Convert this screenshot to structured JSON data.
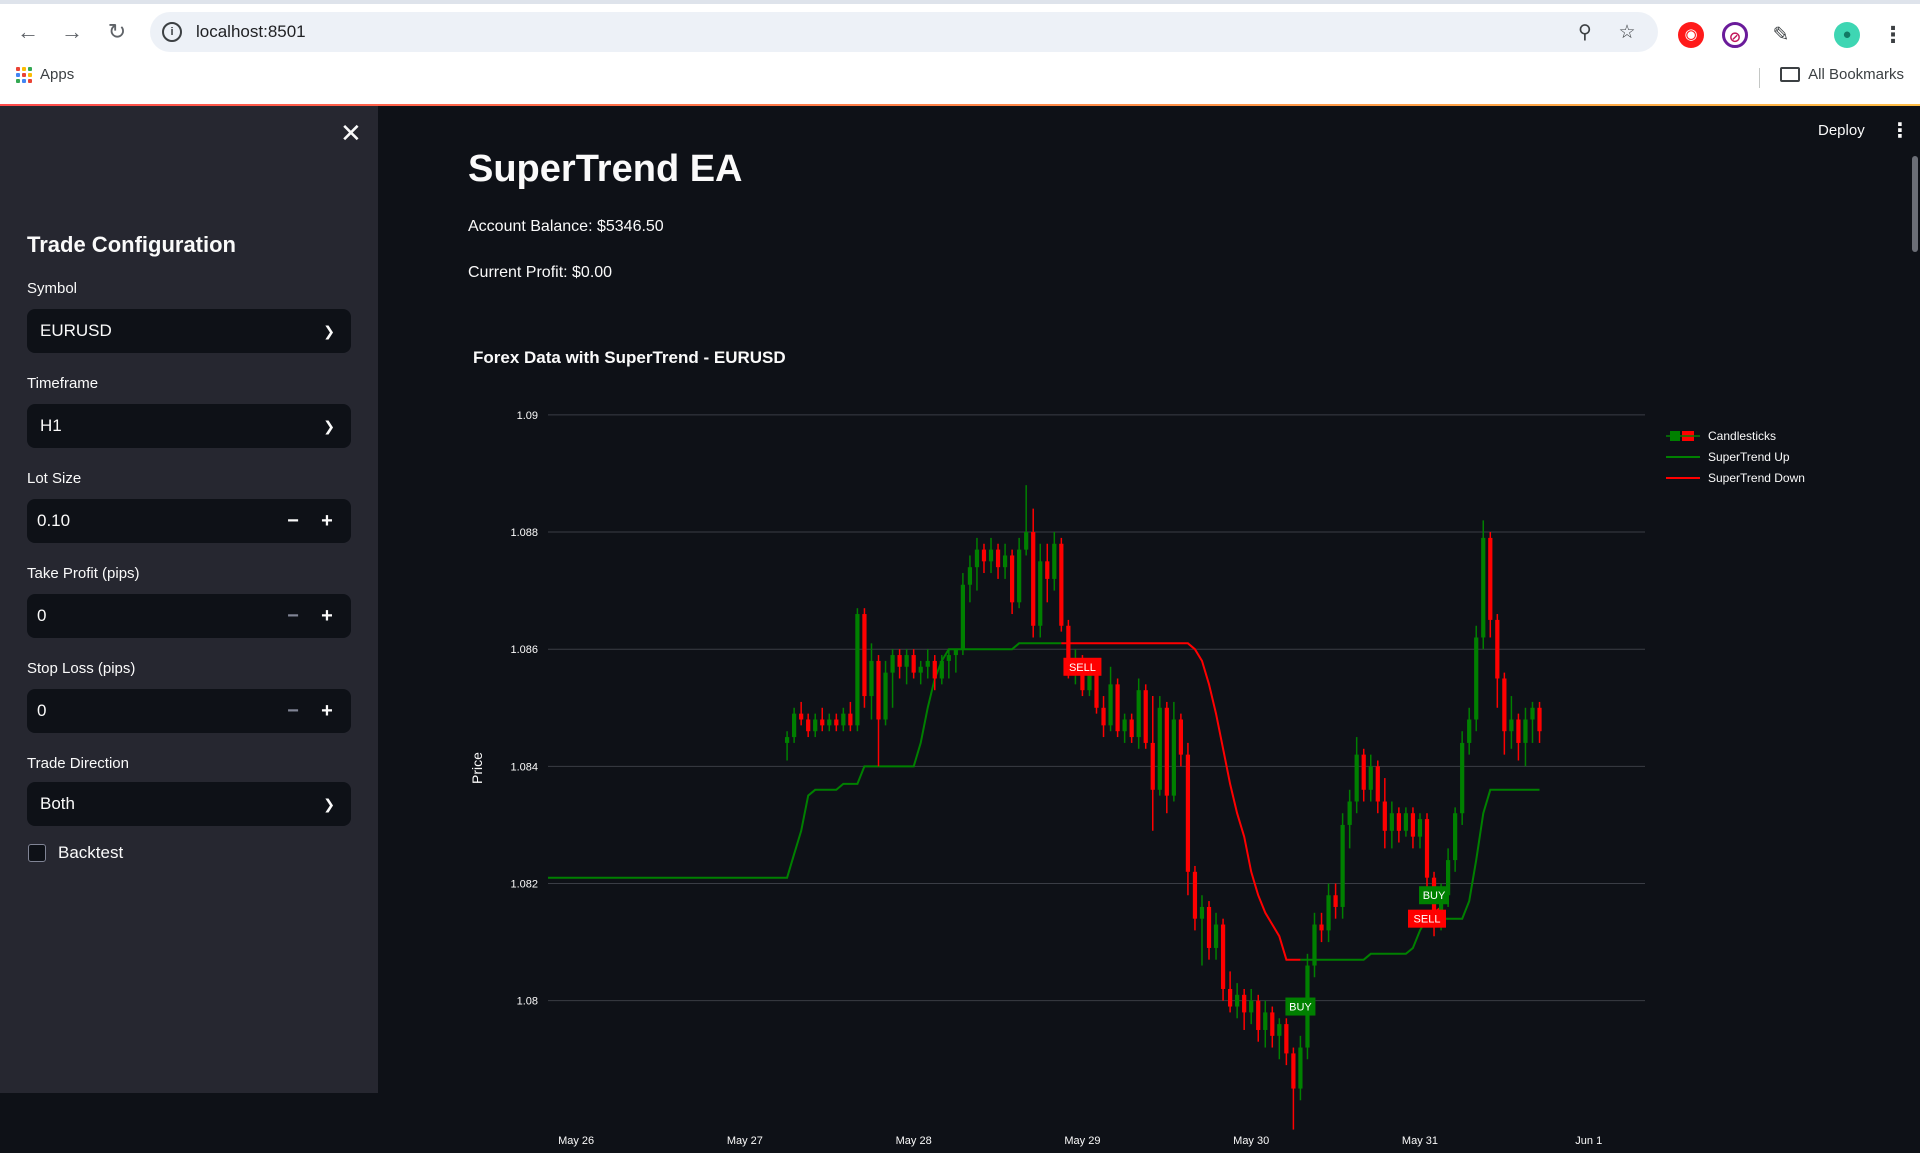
{
  "browser": {
    "url": "localhost:8501",
    "bookmarks": {
      "apps_label": "Apps",
      "all_label": "All Bookmarks"
    }
  },
  "app": {
    "deploy_label": "Deploy",
    "title": "SuperTrend EA",
    "account_balance": "Account Balance: $5346.50",
    "current_profit": "Current Profit: $0.00"
  },
  "sidebar": {
    "title": "Trade Configuration",
    "symbol": {
      "label": "Symbol",
      "value": "EURUSD"
    },
    "timeframe": {
      "label": "Timeframe",
      "value": "H1"
    },
    "lot_size": {
      "label": "Lot Size",
      "value": "0.10"
    },
    "take_profit": {
      "label": "Take Profit (pips)",
      "value": "0"
    },
    "stop_loss": {
      "label": "Stop Loss (pips)",
      "value": "0"
    },
    "trade_direction": {
      "label": "Trade Direction",
      "value": "Both"
    },
    "backtest": {
      "label": "Backtest",
      "checked": false
    }
  },
  "colors": {
    "bg": "#0e1117",
    "sidebar": "#262730",
    "up": "#008000",
    "down": "#ff0000",
    "text": "#fafafa"
  },
  "chart_data": {
    "type": "candlestick",
    "title": "Forex Data with SuperTrend - EURUSD",
    "ylabel": "Price",
    "ylim": [
      1.0774,
      1.0908
    ],
    "yticks": [
      1.08,
      1.082,
      1.084,
      1.086,
      1.088,
      1.09
    ],
    "ytick_labels": [
      "1.08",
      "1.082",
      "1.084",
      "1.086",
      "1.088",
      "1.09"
    ],
    "xlim": [
      0,
      156
    ],
    "xticks": [
      {
        "x": 4,
        "label": "May 26"
      },
      {
        "x": 28,
        "label": "May 27"
      },
      {
        "x": 52,
        "label": "May 28"
      },
      {
        "x": 76,
        "label": "May 29"
      },
      {
        "x": 100,
        "label": "May 30"
      },
      {
        "x": 124,
        "label": "May 31"
      },
      {
        "x": 148,
        "label": "Jun 1"
      }
    ],
    "legend": {
      "position": "top-right",
      "entries": [
        "Candlesticks",
        "SuperTrend Up",
        "SuperTrend Down"
      ]
    },
    "candles": [
      {
        "x": 34,
        "o": 1.0844,
        "h": 1.0846,
        "l": 1.0841,
        "c": 1.0845
      },
      {
        "x": 35,
        "o": 1.0845,
        "h": 1.085,
        "l": 1.0844,
        "c": 1.0849
      },
      {
        "x": 36,
        "o": 1.0849,
        "h": 1.0851,
        "l": 1.0847,
        "c": 1.0848
      },
      {
        "x": 37,
        "o": 1.0848,
        "h": 1.0849,
        "l": 1.0845,
        "c": 1.0846
      },
      {
        "x": 38,
        "o": 1.0846,
        "h": 1.0849,
        "l": 1.0845,
        "c": 1.0848
      },
      {
        "x": 39,
        "o": 1.0848,
        "h": 1.085,
        "l": 1.0846,
        "c": 1.0847
      },
      {
        "x": 40,
        "o": 1.0847,
        "h": 1.0849,
        "l": 1.0846,
        "c": 1.0848
      },
      {
        "x": 41,
        "o": 1.0848,
        "h": 1.0849,
        "l": 1.0846,
        "c": 1.0847
      },
      {
        "x": 42,
        "o": 1.0847,
        "h": 1.085,
        "l": 1.0846,
        "c": 1.0849
      },
      {
        "x": 43,
        "o": 1.0849,
        "h": 1.0851,
        "l": 1.0846,
        "c": 1.0847
      },
      {
        "x": 44,
        "o": 1.0847,
        "h": 1.0867,
        "l": 1.0846,
        "c": 1.0866
      },
      {
        "x": 45,
        "o": 1.0866,
        "h": 1.0867,
        "l": 1.085,
        "c": 1.0852
      },
      {
        "x": 46,
        "o": 1.0852,
        "h": 1.0861,
        "l": 1.0848,
        "c": 1.0858
      },
      {
        "x": 47,
        "o": 1.0858,
        "h": 1.0859,
        "l": 1.084,
        "c": 1.0848
      },
      {
        "x": 48,
        "o": 1.0848,
        "h": 1.0858,
        "l": 1.0847,
        "c": 1.0856
      },
      {
        "x": 49,
        "o": 1.0856,
        "h": 1.086,
        "l": 1.085,
        "c": 1.0859
      },
      {
        "x": 50,
        "o": 1.0859,
        "h": 1.086,
        "l": 1.0855,
        "c": 1.0857
      },
      {
        "x": 51,
        "o": 1.0857,
        "h": 1.086,
        "l": 1.0854,
        "c": 1.0859
      },
      {
        "x": 52,
        "o": 1.0859,
        "h": 1.086,
        "l": 1.0855,
        "c": 1.0856
      },
      {
        "x": 53,
        "o": 1.0856,
        "h": 1.0858,
        "l": 1.0854,
        "c": 1.0857
      },
      {
        "x": 54,
        "o": 1.0857,
        "h": 1.086,
        "l": 1.0855,
        "c": 1.0858
      },
      {
        "x": 55,
        "o": 1.0858,
        "h": 1.0859,
        "l": 1.0853,
        "c": 1.0855
      },
      {
        "x": 56,
        "o": 1.0855,
        "h": 1.0859,
        "l": 1.0854,
        "c": 1.0858
      },
      {
        "x": 57,
        "o": 1.0858,
        "h": 1.086,
        "l": 1.0855,
        "c": 1.0859
      },
      {
        "x": 58,
        "o": 1.0859,
        "h": 1.086,
        "l": 1.0856,
        "c": 1.086
      },
      {
        "x": 59,
        "o": 1.086,
        "h": 1.0873,
        "l": 1.0859,
        "c": 1.0871
      },
      {
        "x": 60,
        "o": 1.0871,
        "h": 1.0876,
        "l": 1.0868,
        "c": 1.0874
      },
      {
        "x": 61,
        "o": 1.0874,
        "h": 1.0879,
        "l": 1.087,
        "c": 1.0877
      },
      {
        "x": 62,
        "o": 1.0877,
        "h": 1.0878,
        "l": 1.0873,
        "c": 1.0875
      },
      {
        "x": 63,
        "o": 1.0875,
        "h": 1.0879,
        "l": 1.0873,
        "c": 1.0877
      },
      {
        "x": 64,
        "o": 1.0877,
        "h": 1.0878,
        "l": 1.0872,
        "c": 1.0874
      },
      {
        "x": 65,
        "o": 1.0874,
        "h": 1.0878,
        "l": 1.0872,
        "c": 1.0876
      },
      {
        "x": 66,
        "o": 1.0876,
        "h": 1.0877,
        "l": 1.0866,
        "c": 1.0868
      },
      {
        "x": 67,
        "o": 1.0868,
        "h": 1.0879,
        "l": 1.0867,
        "c": 1.0877
      },
      {
        "x": 68,
        "o": 1.0877,
        "h": 1.0888,
        "l": 1.0876,
        "c": 1.088
      },
      {
        "x": 69,
        "o": 1.088,
        "h": 1.0884,
        "l": 1.0862,
        "c": 1.0864
      },
      {
        "x": 70,
        "o": 1.0864,
        "h": 1.0878,
        "l": 1.0862,
        "c": 1.0875
      },
      {
        "x": 71,
        "o": 1.0875,
        "h": 1.0878,
        "l": 1.0868,
        "c": 1.0872
      },
      {
        "x": 72,
        "o": 1.0872,
        "h": 1.088,
        "l": 1.087,
        "c": 1.0878
      },
      {
        "x": 73,
        "o": 1.0878,
        "h": 1.0879,
        "l": 1.0863,
        "c": 1.0864
      },
      {
        "x": 74,
        "o": 1.0864,
        "h": 1.0865,
        "l": 1.0855,
        "c": 1.0857
      },
      {
        "x": 75,
        "o": 1.0857,
        "h": 1.086,
        "l": 1.0854,
        "c": 1.0858
      },
      {
        "x": 76,
        "o": 1.0858,
        "h": 1.0859,
        "l": 1.0852,
        "c": 1.0853
      },
      {
        "x": 77,
        "o": 1.0853,
        "h": 1.0858,
        "l": 1.0852,
        "c": 1.0856
      },
      {
        "x": 78,
        "o": 1.0856,
        "h": 1.0857,
        "l": 1.0849,
        "c": 1.085
      },
      {
        "x": 79,
        "o": 1.085,
        "h": 1.0852,
        "l": 1.0845,
        "c": 1.0847
      },
      {
        "x": 80,
        "o": 1.0847,
        "h": 1.0857,
        "l": 1.0846,
        "c": 1.0854
      },
      {
        "x": 81,
        "o": 1.0854,
        "h": 1.0855,
        "l": 1.0845,
        "c": 1.0846
      },
      {
        "x": 82,
        "o": 1.0846,
        "h": 1.0849,
        "l": 1.0844,
        "c": 1.0848
      },
      {
        "x": 83,
        "o": 1.0848,
        "h": 1.0849,
        "l": 1.0844,
        "c": 1.0845
      },
      {
        "x": 84,
        "o": 1.0845,
        "h": 1.0855,
        "l": 1.0843,
        "c": 1.0853
      },
      {
        "x": 85,
        "o": 1.0853,
        "h": 1.0854,
        "l": 1.0843,
        "c": 1.0844
      },
      {
        "x": 86,
        "o": 1.0844,
        "h": 1.0852,
        "l": 1.0829,
        "c": 1.0836
      },
      {
        "x": 87,
        "o": 1.0836,
        "h": 1.0852,
        "l": 1.0835,
        "c": 1.085
      },
      {
        "x": 88,
        "o": 1.085,
        "h": 1.0851,
        "l": 1.0832,
        "c": 1.0835
      },
      {
        "x": 89,
        "o": 1.0835,
        "h": 1.0851,
        "l": 1.0834,
        "c": 1.0848
      },
      {
        "x": 90,
        "o": 1.0848,
        "h": 1.0849,
        "l": 1.084,
        "c": 1.0842
      },
      {
        "x": 91,
        "o": 1.0842,
        "h": 1.0844,
        "l": 1.0818,
        "c": 1.0822
      },
      {
        "x": 92,
        "o": 1.0822,
        "h": 1.0823,
        "l": 1.0812,
        "c": 1.0814
      },
      {
        "x": 93,
        "o": 1.0814,
        "h": 1.0818,
        "l": 1.0806,
        "c": 1.0816
      },
      {
        "x": 94,
        "o": 1.0816,
        "h": 1.0817,
        "l": 1.0807,
        "c": 1.0809
      },
      {
        "x": 95,
        "o": 1.0809,
        "h": 1.0815,
        "l": 1.0807,
        "c": 1.0813
      },
      {
        "x": 96,
        "o": 1.0813,
        "h": 1.0814,
        "l": 1.08,
        "c": 1.0802
      },
      {
        "x": 97,
        "o": 1.0802,
        "h": 1.0805,
        "l": 1.0798,
        "c": 1.0799
      },
      {
        "x": 98,
        "o": 1.0799,
        "h": 1.0803,
        "l": 1.0797,
        "c": 1.0801
      },
      {
        "x": 99,
        "o": 1.0801,
        "h": 1.0802,
        "l": 1.0795,
        "c": 1.0798
      },
      {
        "x": 100,
        "o": 1.0798,
        "h": 1.0802,
        "l": 1.0796,
        "c": 1.08
      },
      {
        "x": 101,
        "o": 1.08,
        "h": 1.0801,
        "l": 1.0793,
        "c": 1.0795
      },
      {
        "x": 102,
        "o": 1.0795,
        "h": 1.08,
        "l": 1.0792,
        "c": 1.0798
      },
      {
        "x": 103,
        "o": 1.0798,
        "h": 1.0799,
        "l": 1.0792,
        "c": 1.0794
      },
      {
        "x": 104,
        "o": 1.0794,
        "h": 1.0797,
        "l": 1.079,
        "c": 1.0796
      },
      {
        "x": 105,
        "o": 1.0796,
        "h": 1.0797,
        "l": 1.0789,
        "c": 1.0791
      },
      {
        "x": 106,
        "o": 1.0791,
        "h": 1.0792,
        "l": 1.0778,
        "c": 1.0785
      },
      {
        "x": 107,
        "o": 1.0785,
        "h": 1.0794,
        "l": 1.0783,
        "c": 1.0792
      },
      {
        "x": 108,
        "o": 1.0792,
        "h": 1.0808,
        "l": 1.079,
        "c": 1.0806
      },
      {
        "x": 109,
        "o": 1.0806,
        "h": 1.0815,
        "l": 1.0804,
        "c": 1.0813
      },
      {
        "x": 110,
        "o": 1.0813,
        "h": 1.0815,
        "l": 1.081,
        "c": 1.0812
      },
      {
        "x": 111,
        "o": 1.0812,
        "h": 1.082,
        "l": 1.081,
        "c": 1.0818
      },
      {
        "x": 112,
        "o": 1.0818,
        "h": 1.082,
        "l": 1.0814,
        "c": 1.0816
      },
      {
        "x": 113,
        "o": 1.0816,
        "h": 1.0832,
        "l": 1.0814,
        "c": 1.083
      },
      {
        "x": 114,
        "o": 1.083,
        "h": 1.0836,
        "l": 1.0826,
        "c": 1.0834
      },
      {
        "x": 115,
        "o": 1.0834,
        "h": 1.0845,
        "l": 1.0832,
        "c": 1.0842
      },
      {
        "x": 116,
        "o": 1.0842,
        "h": 1.0843,
        "l": 1.0834,
        "c": 1.0836
      },
      {
        "x": 117,
        "o": 1.0836,
        "h": 1.0842,
        "l": 1.0834,
        "c": 1.084
      },
      {
        "x": 118,
        "o": 1.084,
        "h": 1.0841,
        "l": 1.0832,
        "c": 1.0834
      },
      {
        "x": 119,
        "o": 1.0834,
        "h": 1.0838,
        "l": 1.0826,
        "c": 1.0829
      },
      {
        "x": 120,
        "o": 1.0829,
        "h": 1.0834,
        "l": 1.0826,
        "c": 1.0832
      },
      {
        "x": 121,
        "o": 1.0832,
        "h": 1.0833,
        "l": 1.0827,
        "c": 1.0829
      },
      {
        "x": 122,
        "o": 1.0829,
        "h": 1.0833,
        "l": 1.0828,
        "c": 1.0832
      },
      {
        "x": 123,
        "o": 1.0832,
        "h": 1.0833,
        "l": 1.0826,
        "c": 1.0828
      },
      {
        "x": 124,
        "o": 1.0828,
        "h": 1.0832,
        "l": 1.0826,
        "c": 1.0831
      },
      {
        "x": 125,
        "o": 1.0831,
        "h": 1.0832,
        "l": 1.0819,
        "c": 1.0821
      },
      {
        "x": 126,
        "o": 1.0821,
        "h": 1.0822,
        "l": 1.0811,
        "c": 1.0814
      },
      {
        "x": 127,
        "o": 1.0814,
        "h": 1.082,
        "l": 1.0812,
        "c": 1.0818
      },
      {
        "x": 128,
        "o": 1.0818,
        "h": 1.0826,
        "l": 1.0816,
        "c": 1.0824
      },
      {
        "x": 129,
        "o": 1.0824,
        "h": 1.0833,
        "l": 1.0822,
        "c": 1.0832
      },
      {
        "x": 130,
        "o": 1.0832,
        "h": 1.0846,
        "l": 1.083,
        "c": 1.0844
      },
      {
        "x": 131,
        "o": 1.0844,
        "h": 1.085,
        "l": 1.0842,
        "c": 1.0848
      },
      {
        "x": 132,
        "o": 1.0848,
        "h": 1.0864,
        "l": 1.0846,
        "c": 1.0862
      },
      {
        "x": 133,
        "o": 1.0862,
        "h": 1.0882,
        "l": 1.086,
        "c": 1.0879
      },
      {
        "x": 134,
        "o": 1.0879,
        "h": 1.088,
        "l": 1.0862,
        "c": 1.0865
      },
      {
        "x": 135,
        "o": 1.0865,
        "h": 1.0866,
        "l": 1.085,
        "c": 1.0855
      },
      {
        "x": 136,
        "o": 1.0855,
        "h": 1.0856,
        "l": 1.0842,
        "c": 1.0846
      },
      {
        "x": 137,
        "o": 1.0846,
        "h": 1.0852,
        "l": 1.0843,
        "c": 1.0848
      },
      {
        "x": 138,
        "o": 1.0848,
        "h": 1.0849,
        "l": 1.0841,
        "c": 1.0844
      },
      {
        "x": 139,
        "o": 1.0844,
        "h": 1.085,
        "l": 1.084,
        "c": 1.0848
      },
      {
        "x": 140,
        "o": 1.0848,
        "h": 1.0851,
        "l": 1.0844,
        "c": 1.085
      },
      {
        "x": 141,
        "o": 1.085,
        "h": 1.0851,
        "l": 1.0844,
        "c": 1.0846
      }
    ],
    "series": [
      {
        "name": "SuperTrend Up",
        "points": [
          [
            0,
            1.0821
          ],
          [
            34,
            1.0821
          ],
          [
            35,
            1.0825
          ],
          [
            36,
            1.0829
          ],
          [
            37,
            1.0835
          ],
          [
            38,
            1.0836
          ],
          [
            41,
            1.0836
          ],
          [
            42,
            1.0837
          ],
          [
            44,
            1.0837
          ],
          [
            45,
            1.084
          ],
          [
            52,
            1.084
          ],
          [
            53,
            1.0844
          ],
          [
            54,
            1.085
          ],
          [
            55,
            1.0855
          ],
          [
            56,
            1.0858
          ],
          [
            57,
            1.086
          ],
          [
            58,
            1.086
          ],
          [
            62,
            1.086
          ],
          [
            66,
            1.086
          ],
          [
            67,
            1.0861
          ],
          [
            73,
            1.0861
          ]
        ]
      },
      {
        "name": "SuperTrend Down",
        "points": [
          [
            73,
            1.0861
          ],
          [
            91,
            1.0861
          ],
          [
            92,
            1.086
          ],
          [
            93,
            1.0858
          ],
          [
            94,
            1.0854
          ],
          [
            95,
            1.0849
          ],
          [
            96,
            1.0843
          ],
          [
            97,
            1.0837
          ],
          [
            98,
            1.0832
          ],
          [
            99,
            1.0828
          ],
          [
            100,
            1.0822
          ],
          [
            101,
            1.0818
          ],
          [
            102,
            1.0815
          ],
          [
            103,
            1.0813
          ],
          [
            104,
            1.0811
          ],
          [
            105,
            1.0807
          ],
          [
            107,
            1.0807
          ]
        ]
      },
      {
        "name": "SuperTrend Up",
        "points": [
          [
            107,
            1.0807
          ],
          [
            108,
            1.0807
          ],
          [
            116,
            1.0807
          ],
          [
            117,
            1.0808
          ],
          [
            118,
            1.0808
          ],
          [
            122,
            1.0808
          ],
          [
            123,
            1.0809
          ],
          [
            124,
            1.0812
          ],
          [
            125,
            1.0814
          ],
          [
            126,
            1.0815
          ],
          [
            127,
            1.0815
          ]
        ]
      },
      {
        "name": "SuperTrend Down",
        "points": [
          [
            125,
            1.0814
          ],
          [
            127,
            1.0816
          ]
        ]
      },
      {
        "name": "SuperTrend Up",
        "points": [
          [
            127,
            1.0814
          ],
          [
            130,
            1.0814
          ],
          [
            131,
            1.0817
          ],
          [
            132,
            1.0824
          ],
          [
            133,
            1.0832
          ],
          [
            134,
            1.0836
          ],
          [
            139,
            1.0836
          ],
          [
            141,
            1.0836
          ]
        ]
      }
    ],
    "signals": [
      {
        "x": 76,
        "y": 1.0857,
        "label": "SELL",
        "type": "sell"
      },
      {
        "x": 107,
        "y": 1.0799,
        "label": "BUY",
        "type": "buy"
      },
      {
        "x": 126,
        "y": 1.0818,
        "label": "BUY",
        "type": "buy"
      },
      {
        "x": 125,
        "y": 1.0814,
        "label": "SELL",
        "type": "sell"
      }
    ]
  }
}
